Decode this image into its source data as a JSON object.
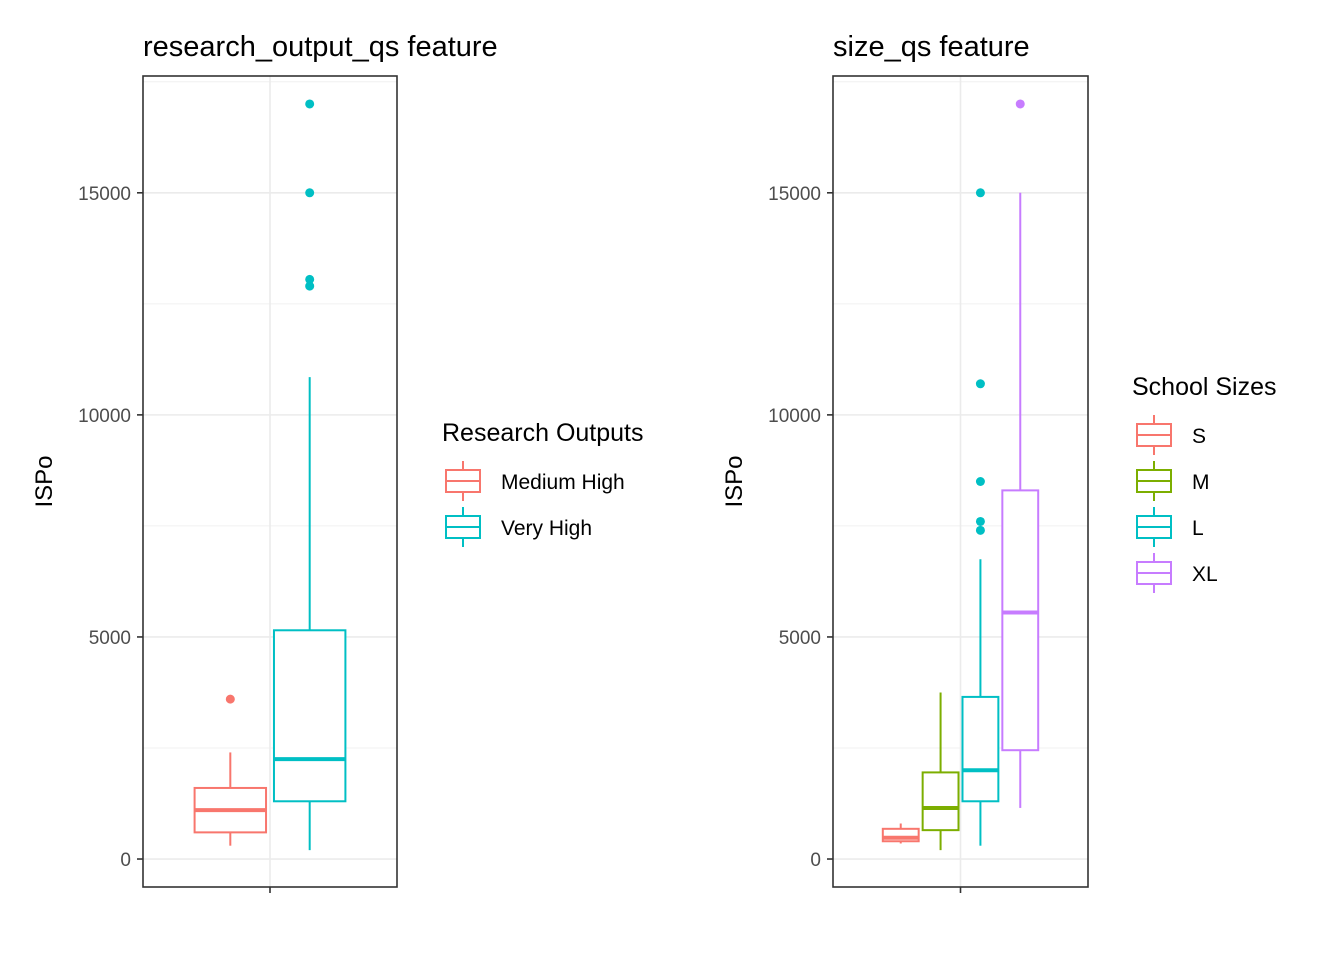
{
  "chart_data": [
    {
      "type": "boxplot",
      "title": "research_output_qs feature",
      "xlabel": "",
      "ylabel": "ISPo",
      "ylim": [
        -630,
        17630
      ],
      "yticks": [
        0,
        5000,
        10000,
        15000
      ],
      "grid": true,
      "legend": {
        "title": "Research Outputs",
        "position": "right"
      },
      "series": [
        {
          "name": "Medium High",
          "color": "#F8766D",
          "min": 300,
          "q1": 600,
          "median": 1100,
          "q3": 1600,
          "max": 2400,
          "outliers": [
            3600
          ]
        },
        {
          "name": "Very High",
          "color": "#00BFC4",
          "min": 200,
          "q1": 1300,
          "median": 2250,
          "q3": 5150,
          "max": 10850,
          "outliers": [
            12900,
            13050,
            15000,
            17000
          ]
        }
      ]
    },
    {
      "type": "boxplot",
      "title": "size_qs feature",
      "xlabel": "",
      "ylabel": "ISPo",
      "ylim": [
        -630,
        17630
      ],
      "yticks": [
        0,
        5000,
        10000,
        15000
      ],
      "grid": true,
      "legend": {
        "title": "School Sizes",
        "position": "right"
      },
      "series": [
        {
          "name": "S",
          "color": "#F8766D",
          "min": 350,
          "q1": 400,
          "median": 480,
          "q3": 680,
          "max": 800,
          "outliers": []
        },
        {
          "name": "M",
          "color": "#7CAE00",
          "min": 200,
          "q1": 650,
          "median": 1150,
          "q3": 1950,
          "max": 3750,
          "outliers": []
        },
        {
          "name": "L",
          "color": "#00BFC4",
          "min": 300,
          "q1": 1300,
          "median": 2000,
          "q3": 3650,
          "max": 6750,
          "outliers": [
            7400,
            7600,
            8500,
            10700,
            15000
          ]
        },
        {
          "name": "XL",
          "color": "#C77CFF",
          "min": 1150,
          "q1": 2450,
          "median": 5550,
          "q3": 8300,
          "max": 15000,
          "outliers": [
            17000
          ]
        }
      ]
    }
  ]
}
